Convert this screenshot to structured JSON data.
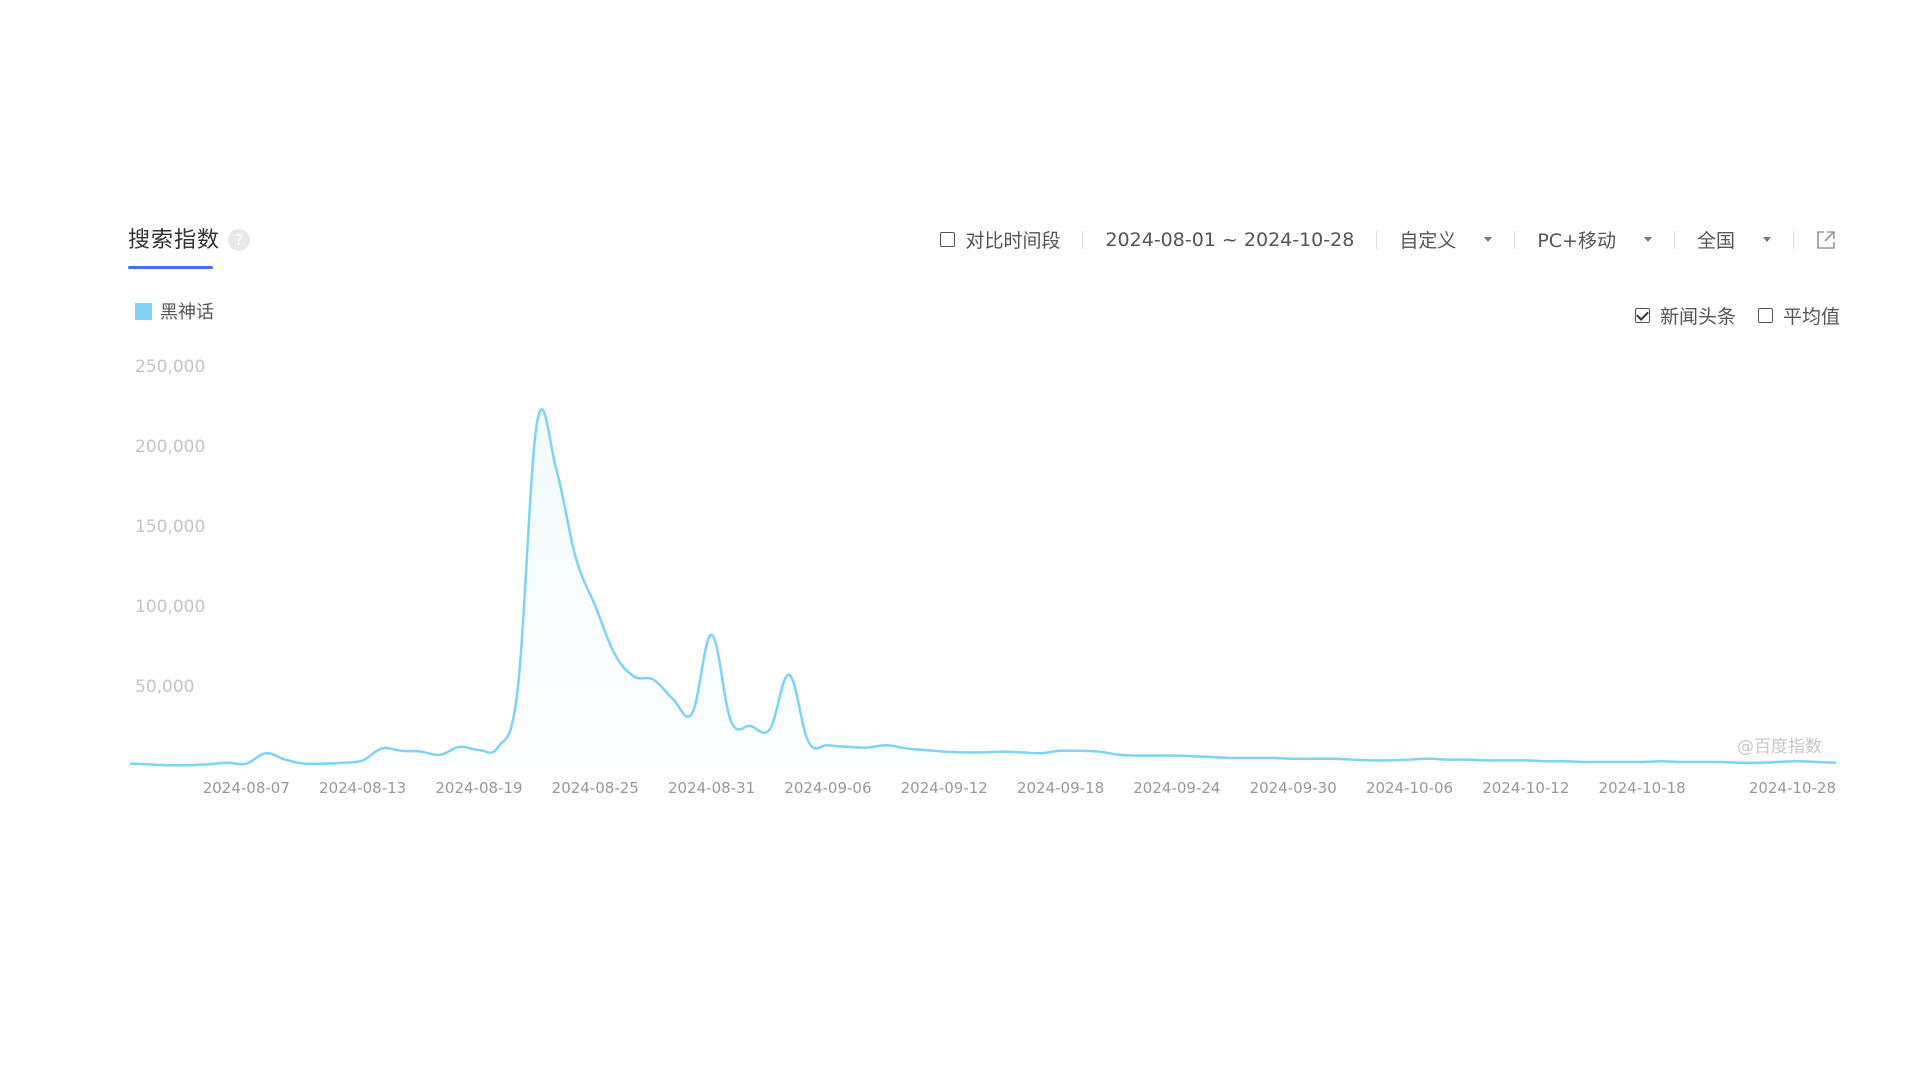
{
  "header": {
    "title": "搜索指数",
    "help_icon": "?"
  },
  "toolbar": {
    "compare_label": "对比时间段",
    "date_range": "2024-08-01 ~ 2024-10-28",
    "mode": "自定义",
    "device": "PC+移动",
    "region": "全国",
    "share_icon": "external-link-icon"
  },
  "legend": {
    "series_name": "黑神话",
    "color": "#7fd3f7"
  },
  "options": {
    "news_label": "新闻头条",
    "news_checked": true,
    "average_label": "平均值",
    "average_checked": false
  },
  "watermark": "@百度指数",
  "chart_data": {
    "type": "area",
    "ylim": [
      0,
      250000
    ],
    "yticks": [
      "50,000",
      "100,000",
      "150,000",
      "200,000",
      "250,000"
    ],
    "ytick_values": [
      50000,
      100000,
      150000,
      200000,
      250000
    ],
    "xticks": [
      "2024-08-07",
      "2024-08-13",
      "2024-08-19",
      "2024-08-25",
      "2024-08-31",
      "2024-09-06",
      "2024-09-12",
      "2024-09-18",
      "2024-09-24",
      "2024-09-30",
      "2024-10-06",
      "2024-10-12",
      "2024-10-18",
      "2024-10-28"
    ],
    "start_date": "2024-08-01",
    "end_date": "2024-10-28",
    "grid": false,
    "series": [
      {
        "name": "黑神话",
        "color": "#7fd3f7",
        "values": [
          1500,
          1000,
          500,
          500,
          1000,
          2000,
          1500,
          8000,
          4000,
          1500,
          1500,
          2000,
          3500,
          11000,
          9500,
          9000,
          7000,
          12000,
          10000,
          12000,
          48000,
          215000,
          185000,
          130000,
          100000,
          70000,
          56000,
          54000,
          42000,
          33000,
          82000,
          28000,
          25000,
          23000,
          57000,
          15000,
          13000,
          12000,
          11500,
          13000,
          11000,
          10000,
          9000,
          8500,
          8500,
          9000,
          8500,
          8000,
          9500,
          9500,
          9000,
          7000,
          6500,
          6500,
          6500,
          6000,
          5500,
          5000,
          5000,
          5000,
          4500,
          4500,
          4500,
          4000,
          3500,
          3500,
          4000,
          4500,
          4000,
          4000,
          3500,
          3500,
          3500,
          3000,
          3000,
          2500,
          2500,
          2500,
          2500,
          3000,
          2500,
          2500,
          2500,
          2000,
          2000,
          2500,
          3000,
          2500,
          2000
        ]
      }
    ]
  }
}
